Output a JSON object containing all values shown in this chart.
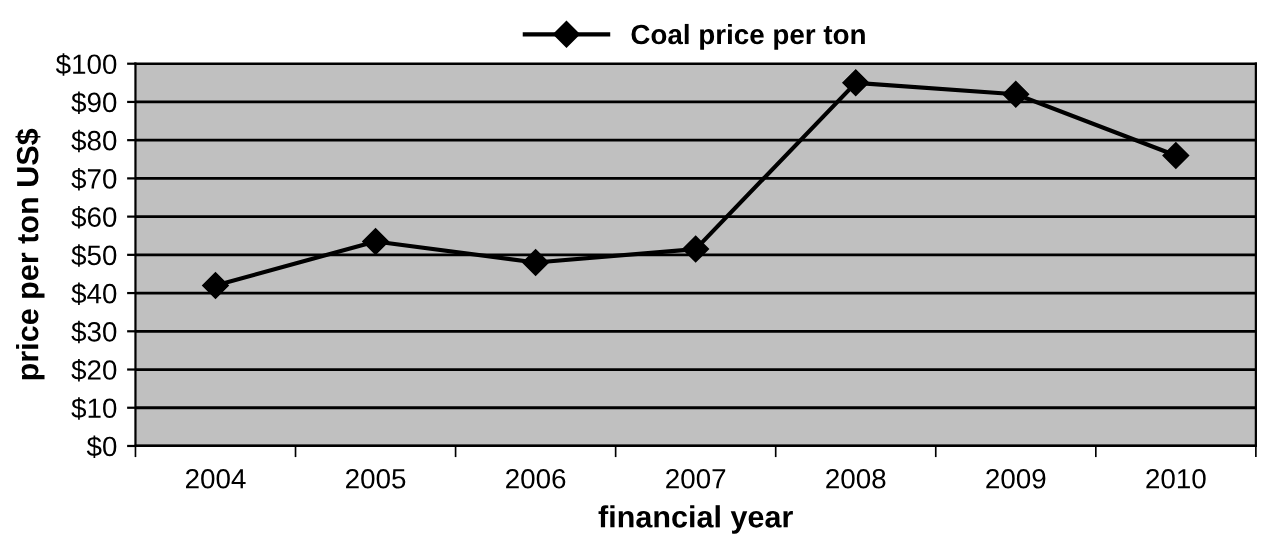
{
  "chart_data": {
    "type": "line",
    "categories": [
      "2004",
      "2005",
      "2006",
      "2007",
      "2008",
      "2009",
      "2010"
    ],
    "series": [
      {
        "name": "Coal price per ton",
        "color": "#000000",
        "values": [
          42,
          53.5,
          48,
          51.5,
          95,
          92,
          76
        ]
      }
    ],
    "xlabel": "financial year",
    "ylabel": "price per ton US$",
    "ylim": [
      0,
      100
    ],
    "yticks": [
      {
        "value": 0,
        "label": "$0"
      },
      {
        "value": 10,
        "label": "$10"
      },
      {
        "value": 20,
        "label": "$20"
      },
      {
        "value": 30,
        "label": "$30"
      },
      {
        "value": 40,
        "label": "$40"
      },
      {
        "value": 50,
        "label": "$50"
      },
      {
        "value": 60,
        "label": "$60"
      },
      {
        "value": 70,
        "label": "$70"
      },
      {
        "value": 80,
        "label": "$80"
      },
      {
        "value": 90,
        "label": "$90"
      },
      {
        "value": 100,
        "label": "$100"
      }
    ],
    "grid": "y",
    "legend": "top",
    "marker": "diamond",
    "line_style": "solid"
  }
}
